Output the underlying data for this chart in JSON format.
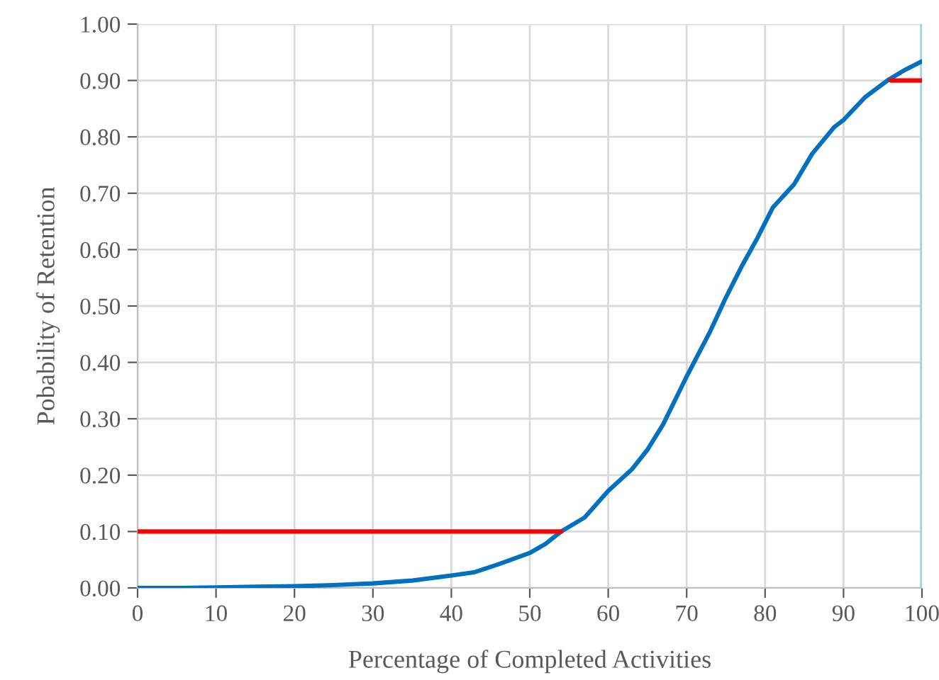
{
  "chart_data": {
    "type": "line",
    "xlabel": "Percentage of Completed Activities",
    "ylabel": "Pobability of Retention",
    "series": [
      {
        "color": "#0070c0",
        "x": [
          0,
          5,
          10,
          15,
          20,
          25,
          30,
          35,
          40,
          43,
          46,
          50,
          52,
          54,
          57,
          60,
          63,
          65,
          67,
          70,
          73,
          75,
          77,
          79,
          81,
          83.7,
          86,
          88.8,
          90,
          92.8,
          95.8,
          98,
          100
        ],
        "values": [
          0,
          0,
          0.001,
          0.002,
          0.003,
          0.005,
          0.008,
          0.013,
          0.022,
          0.028,
          0.042,
          0.062,
          0.078,
          0.1,
          0.125,
          0.172,
          0.21,
          0.245,
          0.29,
          0.375,
          0.455,
          0.515,
          0.57,
          0.62,
          0.675,
          0.716,
          0.77,
          0.817,
          0.83,
          0.871,
          0.902,
          0.92,
          0.934
        ]
      },
      {
        "color": "#ff0000",
        "x": [
          0,
          54
        ],
        "values": [
          0.1,
          0.1
        ]
      },
      {
        "color": "#ff0000",
        "x": [
          96,
          100
        ],
        "values": [
          0.9,
          0.9
        ]
      }
    ],
    "ref_lines": [
      {
        "axis": "x",
        "value": 100,
        "color": "#9dd3f0"
      }
    ],
    "xlim": [
      0,
      100
    ],
    "xticks": [
      0,
      10,
      20,
      30,
      40,
      50,
      60,
      70,
      80,
      90,
      100
    ],
    "ylim": [
      0,
      1
    ],
    "yticks": [
      {
        "value": 0,
        "label": "0.00"
      },
      {
        "value": 0.1,
        "label": "0.10"
      },
      {
        "value": 0.2,
        "label": "0.20"
      },
      {
        "value": 0.3,
        "label": "0.30"
      },
      {
        "value": 0.4,
        "label": "0.40"
      },
      {
        "value": 0.5,
        "label": "0.50"
      },
      {
        "value": 0.6,
        "label": "0.60"
      },
      {
        "value": 0.7,
        "label": "0.70"
      },
      {
        "value": 0.8,
        "label": "0.80"
      },
      {
        "value": 0.9,
        "label": "0.90"
      },
      {
        "value": 1,
        "label": "1.00"
      }
    ],
    "grid": true,
    "legend": false
  }
}
